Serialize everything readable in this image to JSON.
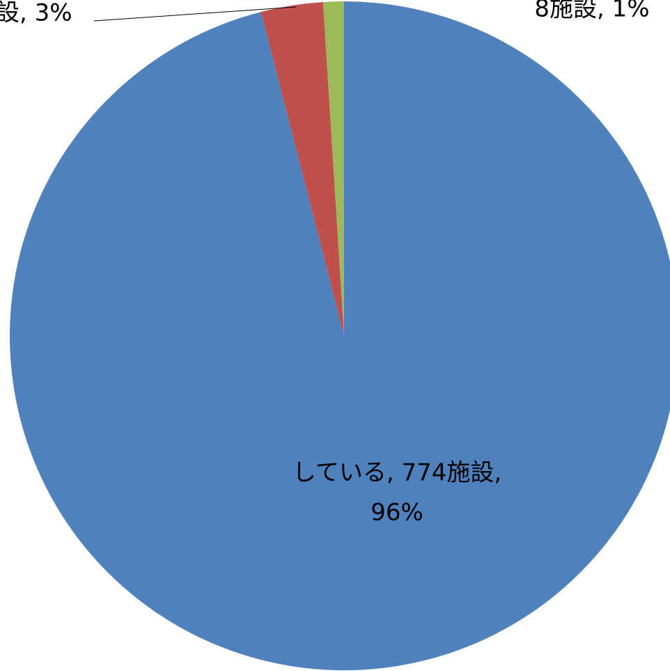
{
  "chart_data": {
    "type": "pie",
    "values": [
      96,
      3,
      1
    ],
    "colors": [
      "#4f81bd",
      "#c0504d",
      "#9bbb59"
    ],
    "labels": [
      [
        "している, 774施設,",
        "96%"
      ],
      [
        "設, 3%"
      ],
      [
        "8施設, 1%"
      ]
    ]
  }
}
